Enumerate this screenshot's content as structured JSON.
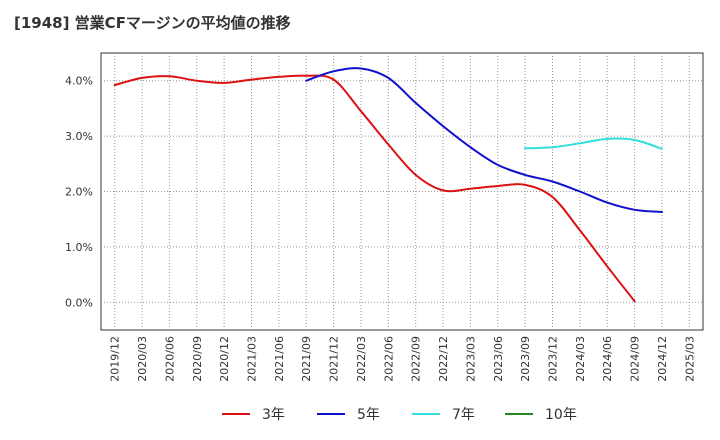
{
  "chart_data": {
    "type": "line",
    "title": "[1948]  営業CFマージンの平均値の推移",
    "xlabel": "",
    "ylabel": "",
    "x_labels": [
      "2019/12",
      "2020/03",
      "2020/06",
      "2020/09",
      "2020/12",
      "2021/03",
      "2021/06",
      "2021/09",
      "2021/12",
      "2022/03",
      "2022/06",
      "2022/09",
      "2022/12",
      "2023/03",
      "2023/06",
      "2023/09",
      "2023/12",
      "2024/03",
      "2024/06",
      "2024/09",
      "2024/12",
      "2025/03"
    ],
    "y_ticks": [
      {
        "value": 0.0,
        "label": "0.0%"
      },
      {
        "value": 1.0,
        "label": "1.0%"
      },
      {
        "value": 2.0,
        "label": "2.0%"
      },
      {
        "value": 3.0,
        "label": "3.0%"
      },
      {
        "value": 4.0,
        "label": "4.0%"
      }
    ],
    "ylim": [
      -0.5,
      4.5
    ],
    "grid": true,
    "legend_position": "bottom",
    "series": [
      {
        "name": "3年",
        "color": "#dd1111",
        "start_index": 0,
        "values": [
          3.92,
          4.05,
          4.08,
          4.0,
          3.96,
          4.02,
          4.07,
          4.09,
          4.02,
          3.45,
          2.85,
          2.3,
          2.02,
          2.05,
          2.1,
          2.12,
          1.9,
          1.3,
          0.65,
          0.02
        ]
      },
      {
        "name": "5年",
        "color": "#1111cc",
        "start_index": 7,
        "values": [
          4.0,
          4.17,
          4.22,
          4.05,
          3.6,
          3.18,
          2.8,
          2.48,
          2.3,
          2.18,
          2.0,
          1.8,
          1.67,
          1.63
        ]
      },
      {
        "name": "7年",
        "color": "#33dddd",
        "start_index": 15,
        "values": [
          2.78,
          2.8,
          2.87,
          2.95,
          2.93,
          2.77
        ]
      },
      {
        "name": "10年",
        "color": "#228822",
        "start_index": 0,
        "values": []
      }
    ]
  }
}
